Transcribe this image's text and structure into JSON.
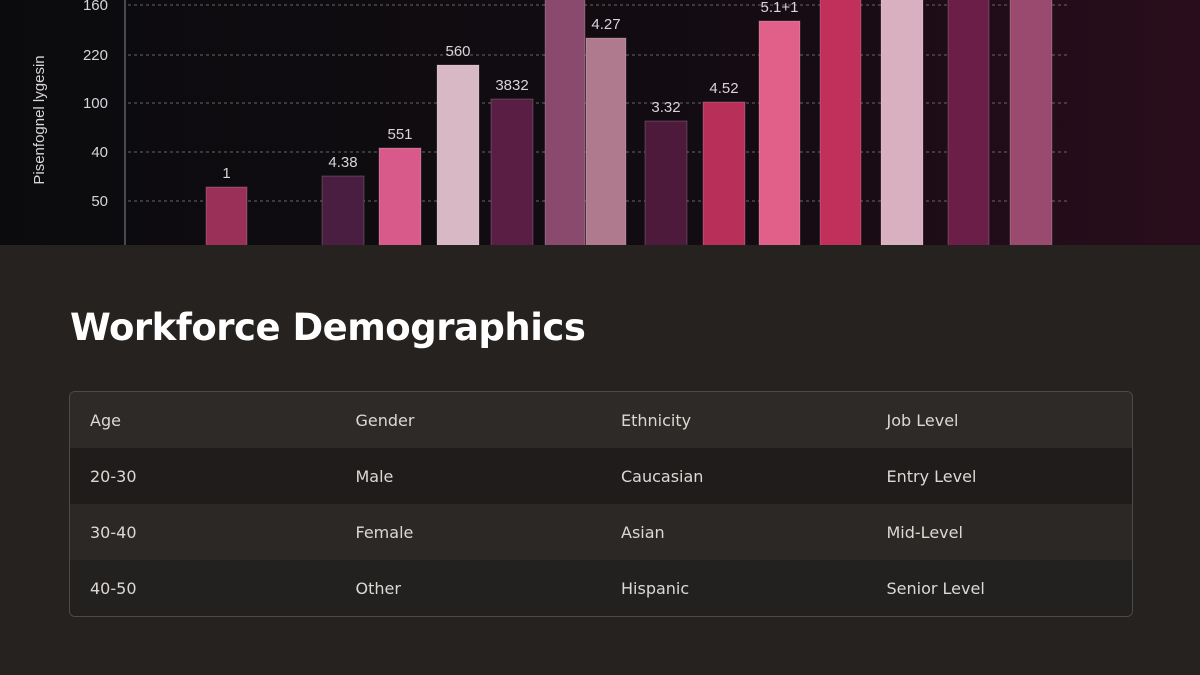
{
  "hero_image": {
    "y_axis_label": "Pisenfognel lygesin",
    "tick_labels": [
      "160",
      "220",
      "100",
      "40",
      "50"
    ],
    "bar_labels": [
      "1",
      "4.38",
      "551",
      "560",
      "3832",
      "4.27",
      "3.32",
      "4.52",
      "5.1+1"
    ]
  },
  "header": {
    "title": "Workforce Demographics"
  },
  "table": {
    "columns": [
      "Age",
      "Gender",
      "Ethnicity",
      "Job Level"
    ],
    "rows": [
      [
        "20-30",
        "Male",
        "Caucasian",
        "Entry Level"
      ],
      [
        "30-40",
        "Female",
        "Asian",
        "Mid-Level"
      ],
      [
        "40-50",
        "Other",
        "Hispanic",
        "Senior Level"
      ]
    ]
  }
}
